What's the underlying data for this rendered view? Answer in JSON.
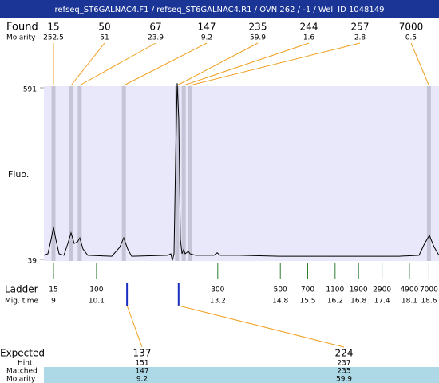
{
  "title": "refseq_ST6GALNAC4.F1 / refseq_ST6GALNAC4.R1 / OVN 262 / -1 / Well ID 1048149",
  "found": {
    "label": "Found",
    "molarity_label": "Molarity",
    "sizes": [
      15,
      50,
      67,
      147,
      235,
      244,
      257,
      7000
    ],
    "molarity": [
      252.5,
      51,
      23.9,
      9.2,
      59.9,
      1.6,
      2.8,
      0.5
    ],
    "times": [
      9.0,
      9.45,
      9.67,
      10.8,
      12.16,
      12.33,
      12.49,
      18.6
    ]
  },
  "trace": {
    "axis_label": "Fluo.",
    "ylim": [
      39,
      591
    ],
    "yticks": [
      39,
      591
    ],
    "xlim": [
      8.755,
      18.857
    ],
    "x": [
      8.755,
      8.857,
      8.939,
      9.0,
      9.061,
      9.143,
      9.265,
      9.367,
      9.449,
      9.531,
      9.612,
      9.673,
      9.755,
      9.878,
      10.49,
      10.694,
      10.796,
      10.898,
      11.0,
      11.918,
      12.0,
      12.041,
      12.082,
      12.122,
      12.163,
      12.204,
      12.245,
      12.286,
      12.327,
      12.367,
      12.449,
      12.49,
      12.633,
      13.102,
      13.184,
      13.265,
      13.755,
      14.776,
      15.796,
      16.816,
      17.837,
      18.347,
      18.49,
      18.612,
      18.735,
      18.857
    ],
    "y": [
      52,
      57,
      103,
      142,
      103,
      57,
      52,
      90,
      124,
      90,
      95,
      108,
      72,
      52,
      49,
      78,
      108,
      72,
      49,
      52,
      57,
      36,
      57,
      360,
      606,
      488,
      103,
      57,
      70,
      57,
      65,
      57,
      52,
      52,
      60,
      52,
      52,
      49,
      49,
      49,
      49,
      52,
      90,
      116,
      78,
      52
    ]
  },
  "ladder": {
    "label": "Ladder",
    "time_label": "Mig. time",
    "sizes": [
      15,
      100,
      300,
      500,
      700,
      1100,
      1900,
      2900,
      4900,
      7000
    ],
    "times": [
      9,
      10.1,
      13.2,
      14.8,
      15.5,
      16.2,
      16.8,
      17.4,
      18.1,
      18.6
    ]
  },
  "expected": {
    "label": "Expected",
    "hint_label": "Hint",
    "matched_label": "Matched",
    "molarity_label": "Molarity",
    "sizes": [
      137,
      224
    ],
    "hint": [
      151,
      237
    ],
    "matched": [
      147,
      235
    ],
    "molarity": [
      9.2,
      59.9
    ],
    "times": [
      10.88,
      12.2
    ]
  }
}
